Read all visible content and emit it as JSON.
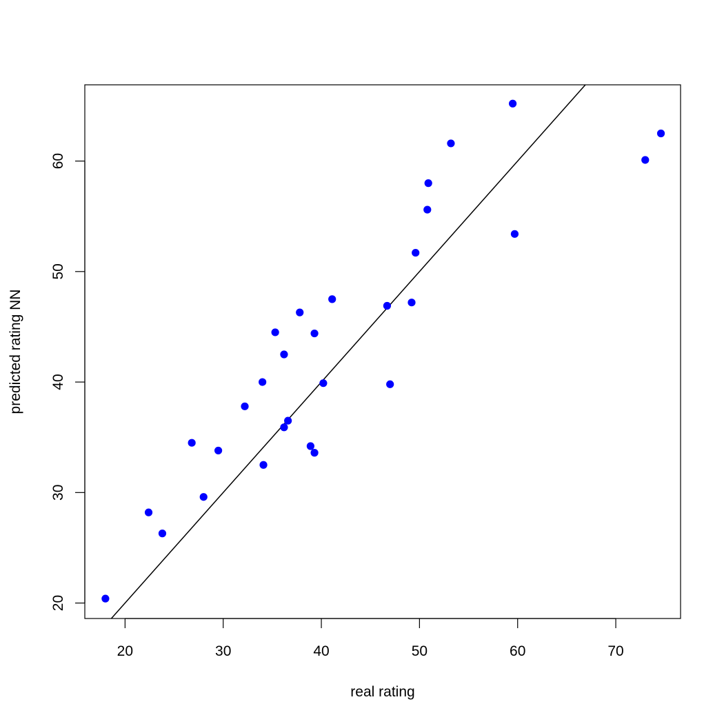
{
  "chart_data": {
    "type": "scatter",
    "title": "",
    "xlabel": "real rating",
    "ylabel": "predicted rating NN",
    "xlim": [
      15.9,
      76.6
    ],
    "ylim": [
      18.6,
      66.9
    ],
    "xticks": [
      20,
      30,
      40,
      50,
      60,
      70
    ],
    "yticks": [
      20,
      30,
      40,
      50,
      60
    ],
    "grid": false,
    "legend": "none",
    "point_color": "#0000ff",
    "reference_line": {
      "type": "identity",
      "intercept": 0,
      "slope": 1,
      "color": "#000000"
    },
    "points": [
      {
        "x": 18.0,
        "y": 20.4
      },
      {
        "x": 22.4,
        "y": 28.2
      },
      {
        "x": 23.8,
        "y": 26.3
      },
      {
        "x": 26.8,
        "y": 34.5
      },
      {
        "x": 28.0,
        "y": 29.6
      },
      {
        "x": 29.5,
        "y": 33.8
      },
      {
        "x": 32.2,
        "y": 37.8
      },
      {
        "x": 34.0,
        "y": 40.0
      },
      {
        "x": 34.1,
        "y": 32.5
      },
      {
        "x": 35.3,
        "y": 44.5
      },
      {
        "x": 36.2,
        "y": 42.5
      },
      {
        "x": 36.2,
        "y": 35.9
      },
      {
        "x": 36.6,
        "y": 36.5
      },
      {
        "x": 37.8,
        "y": 46.3
      },
      {
        "x": 38.9,
        "y": 34.2
      },
      {
        "x": 39.3,
        "y": 44.4
      },
      {
        "x": 39.3,
        "y": 33.6
      },
      {
        "x": 40.2,
        "y": 39.9
      },
      {
        "x": 41.1,
        "y": 47.5
      },
      {
        "x": 46.7,
        "y": 46.9
      },
      {
        "x": 47.0,
        "y": 39.8
      },
      {
        "x": 49.2,
        "y": 47.2
      },
      {
        "x": 49.6,
        "y": 51.7
      },
      {
        "x": 50.8,
        "y": 55.6
      },
      {
        "x": 50.9,
        "y": 58.0
      },
      {
        "x": 53.2,
        "y": 61.6
      },
      {
        "x": 59.5,
        "y": 65.2
      },
      {
        "x": 59.7,
        "y": 53.4
      },
      {
        "x": 73.0,
        "y": 60.1
      },
      {
        "x": 74.6,
        "y": 62.5
      }
    ]
  }
}
